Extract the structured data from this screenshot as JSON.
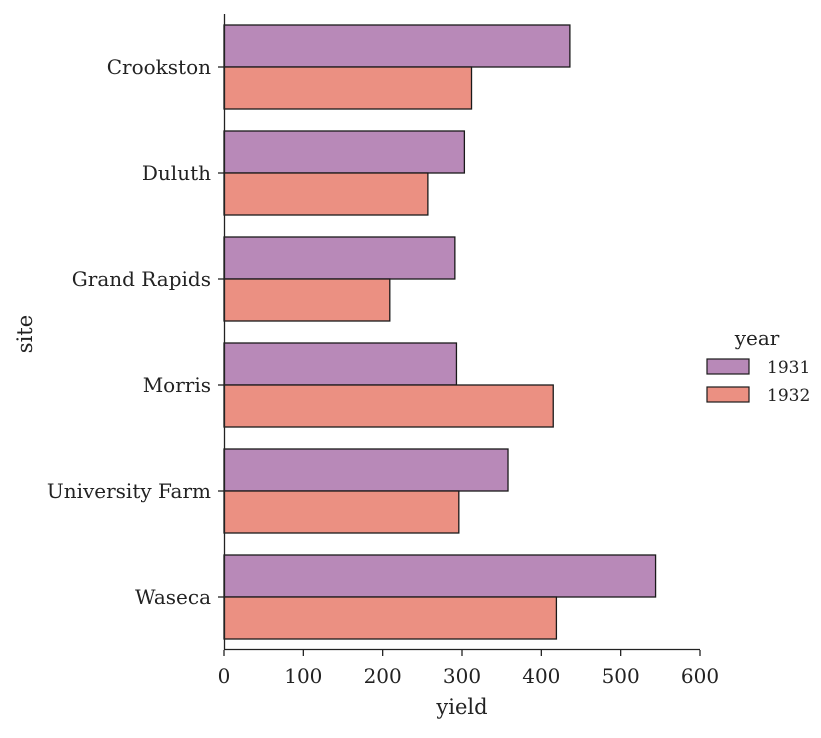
{
  "chart_data": {
    "type": "bar",
    "orientation": "horizontal",
    "categories": [
      "Crookston",
      "Duluth",
      "Grand Rapids",
      "Morris",
      "University Farm",
      "Waseca"
    ],
    "series": [
      {
        "name": "1931",
        "values": [
          436,
          303,
          291,
          293,
          358,
          544
        ],
        "color": "#b889b8"
      },
      {
        "name": "1932",
        "values": [
          312,
          257,
          209,
          415,
          296,
          419
        ],
        "color": "#eb9082"
      }
    ],
    "xlabel": "yield",
    "ylabel": "site",
    "xlim": [
      0,
      600
    ],
    "xticks": [
      "0",
      "100",
      "200",
      "300",
      "400",
      "500",
      "600"
    ],
    "grid": false,
    "legend": {
      "title": "year",
      "placement": "right"
    },
    "bar_edge_color": "#1a1a1a"
  }
}
